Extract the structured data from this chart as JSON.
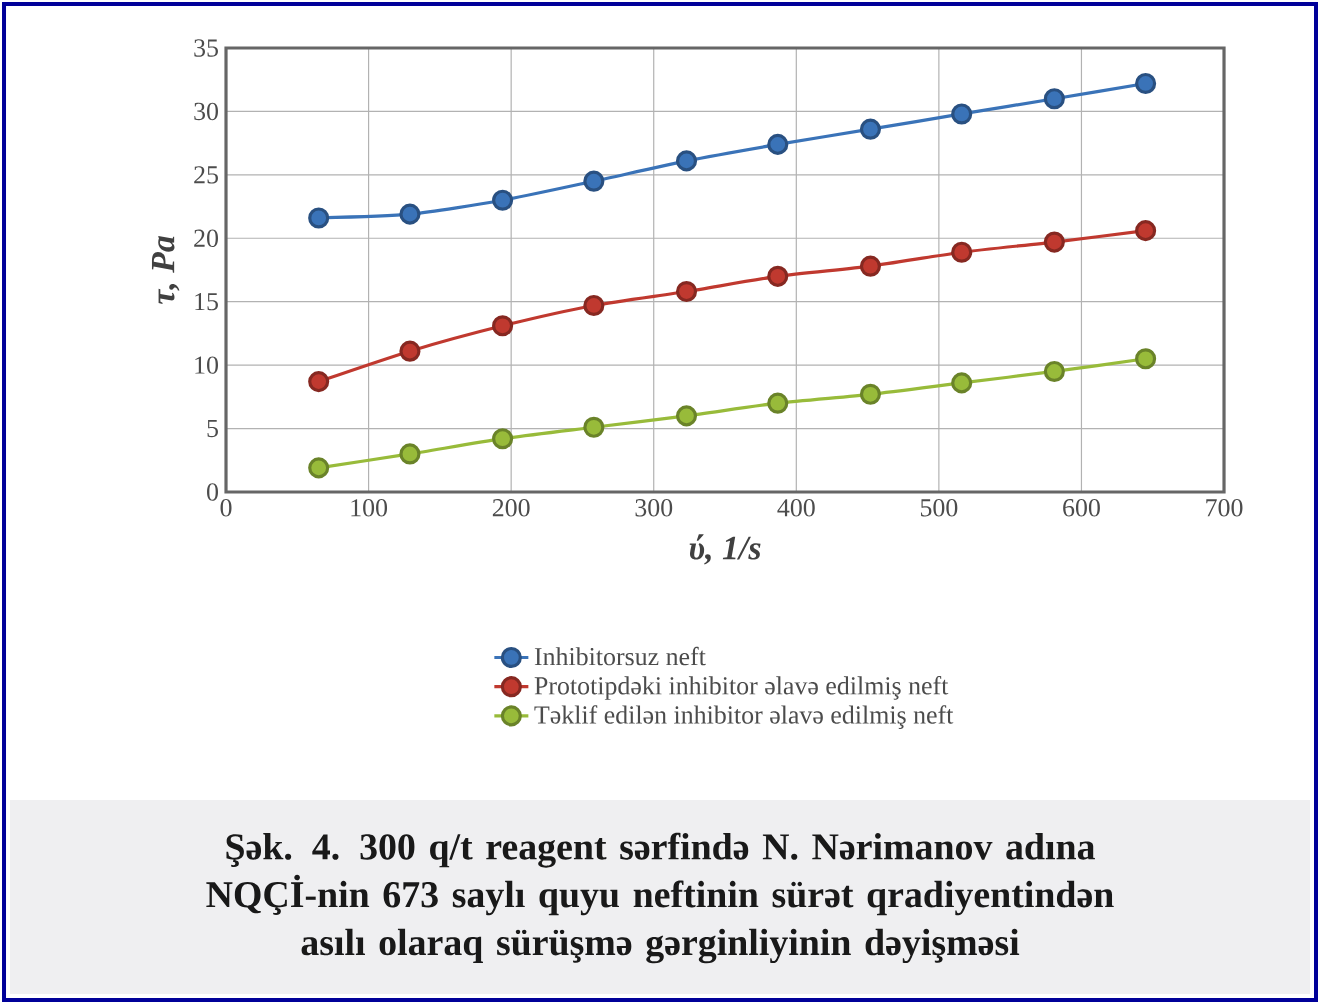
{
  "chart_data": {
    "type": "line",
    "title": "Şək. 4. 300 q/t reagent sərfində N. Nərimanov adına NQÇİ-nin 673 saylı quyu neftinin sürət qradiyentindən asılı olaraq sürüşmə gərginliyinin dəyişməsi",
    "xlabel": "ύ, 1/s",
    "ylabel": "τ, Pa",
    "x": [
      65,
      129,
      194,
      258,
      323,
      387,
      452,
      516,
      581,
      645
    ],
    "series": [
      {
        "name": "Inhibitorsuz neft",
        "color": "#3a73b8",
        "values": [
          21.6,
          21.9,
          23.0,
          24.5,
          26.1,
          27.4,
          28.6,
          29.8,
          31.0,
          32.2
        ]
      },
      {
        "name": "Prototipdəki inhibitor əlavə edilmiş neft",
        "color": "#c0392f",
        "values": [
          8.7,
          11.1,
          13.1,
          14.7,
          15.8,
          17.0,
          17.8,
          18.9,
          19.7,
          20.6
        ]
      },
      {
        "name": "Təklif edilən inhibitor əlavə edilmiş neft",
        "color": "#98bb3a",
        "values": [
          1.9,
          3.0,
          4.2,
          5.1,
          6.0,
          7.0,
          7.7,
          8.6,
          9.5,
          10.5
        ]
      }
    ],
    "xlim": [
      0,
      700
    ],
    "xticks": [
      0,
      100,
      200,
      300,
      400,
      500,
      600,
      700
    ],
    "ylim": [
      0,
      35
    ],
    "yticks": [
      0,
      5,
      10,
      15,
      20,
      25,
      30,
      35
    ],
    "grid": true,
    "legend": "bottom",
    "marker": "circle",
    "line_style": "solid"
  }
}
